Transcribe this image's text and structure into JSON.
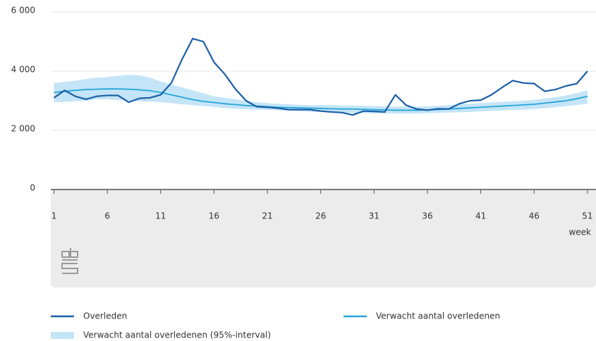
{
  "chart_data": {
    "type": "line",
    "x": [
      1,
      2,
      3,
      4,
      5,
      6,
      7,
      8,
      9,
      10,
      11,
      12,
      13,
      14,
      15,
      16,
      17,
      18,
      19,
      20,
      21,
      22,
      23,
      24,
      25,
      26,
      27,
      28,
      29,
      30,
      31,
      32,
      33,
      34,
      35,
      36,
      37,
      38,
      39,
      40,
      41,
      42,
      43,
      44,
      45,
      46,
      47,
      48,
      49,
      50,
      51
    ],
    "xlim": [
      0.7,
      51.8
    ],
    "xticks": [
      1,
      6,
      11,
      16,
      21,
      26,
      31,
      36,
      41,
      46,
      51
    ],
    "xlabel": "week",
    "ylim": [
      0,
      6000
    ],
    "yticks": [
      0,
      {
        "value": 2000,
        "label": "2 000"
      },
      {
        "value": 4000,
        "label": "4 000"
      },
      {
        "value": 6000,
        "label": "6 000"
      }
    ],
    "grid": true,
    "series": [
      {
        "name": "Overleden",
        "color": "#1b5ea8",
        "values": [
          3100,
          3350,
          3150,
          3050,
          3150,
          3180,
          3180,
          2950,
          3080,
          3100,
          3200,
          3600,
          4400,
          5100,
          5000,
          4300,
          3900,
          3400,
          3000,
          2800,
          2780,
          2750,
          2700,
          2700,
          2700,
          2650,
          2620,
          2600,
          2520,
          2650,
          2640,
          2620,
          3200,
          2850,
          2720,
          2680,
          2730,
          2720,
          2900,
          3000,
          3020,
          3200,
          3450,
          3680,
          3600,
          3580,
          3320,
          3380,
          3500,
          3580,
          4000
        ]
      },
      {
        "name": "Verwacht aantal overledenen",
        "color": "#27a5d8",
        "values": [
          3280,
          3320,
          3350,
          3380,
          3390,
          3400,
          3400,
          3390,
          3370,
          3340,
          3280,
          3200,
          3120,
          3040,
          2980,
          2940,
          2900,
          2870,
          2840,
          2820,
          2800,
          2780,
          2770,
          2760,
          2750,
          2740,
          2730,
          2720,
          2720,
          2710,
          2700,
          2690,
          2680,
          2680,
          2680,
          2690,
          2700,
          2720,
          2740,
          2760,
          2780,
          2800,
          2820,
          2840,
          2860,
          2880,
          2920,
          2960,
          3000,
          3070,
          3150
        ]
      }
    ],
    "band": {
      "name": "Verwacht aantal overledenen (95%-interval)",
      "color": "#c4e5f7",
      "lower": [
        2950,
        2960,
        2980,
        3000,
        3050,
        3050,
        3020,
        3000,
        2980,
        2970,
        2950,
        2920,
        2880,
        2850,
        2820,
        2790,
        2750,
        2730,
        2710,
        2700,
        2690,
        2680,
        2660,
        2650,
        2630,
        2620,
        2610,
        2600,
        2590,
        2580,
        2575,
        2570,
        2570,
        2570,
        2570,
        2580,
        2590,
        2600,
        2610,
        2620,
        2640,
        2660,
        2670,
        2690,
        2700,
        2720,
        2750,
        2780,
        2820,
        2860,
        2900
      ],
      "upper": [
        3600,
        3640,
        3680,
        3740,
        3780,
        3800,
        3840,
        3880,
        3860,
        3780,
        3650,
        3550,
        3450,
        3350,
        3250,
        3150,
        3100,
        3050,
        3000,
        2950,
        2920,
        2900,
        2880,
        2860,
        2850,
        2850,
        2850,
        2840,
        2840,
        2830,
        2820,
        2810,
        2800,
        2800,
        2800,
        2810,
        2830,
        2850,
        2880,
        2900,
        2920,
        2940,
        2960,
        2980,
        3000,
        3030,
        3070,
        3120,
        3180,
        3260,
        3350
      ]
    }
  }
}
